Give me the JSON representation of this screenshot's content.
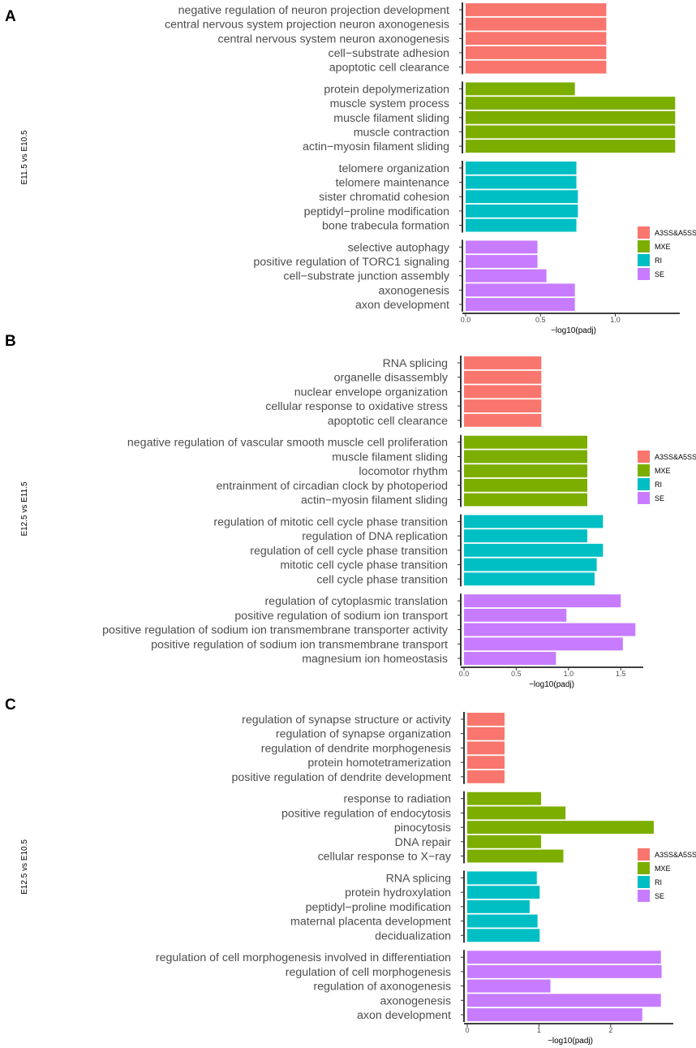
{
  "colors": {
    "A3SS&A5SS": "#F8766D",
    "MXE": "#7CAE00",
    "RI": "#00BFC4",
    "SE": "#C77CFF"
  },
  "legend": [
    "A3SS&A5SS",
    "MXE",
    "RI",
    "SE"
  ],
  "chart_data": [
    {
      "type": "bar",
      "orientation": "horizontal",
      "panel": "A",
      "ylabel": "E11.5 vs E10.5",
      "xlabel": "−log10(padj)",
      "xlim": [
        0,
        1.42
      ],
      "ticks": [
        0.0,
        0.5,
        1.0
      ],
      "tick_labels": [
        "0.0",
        "0.5",
        "1.0"
      ],
      "groups": [
        {
          "type": "A3SS&A5SS",
          "terms": [
            "negative regulation of neuron projection development",
            "central nervous system projection neuron axonogenesis",
            "central nervous system neuron axonogenesis",
            "cell−substrate adhesion",
            "apoptotic cell clearance"
          ],
          "values": [
            0.94,
            0.94,
            0.94,
            0.94,
            0.94
          ]
        },
        {
          "type": "MXE",
          "terms": [
            "protein depolymerization",
            "muscle system process",
            "muscle filament sliding",
            "muscle contraction",
            "actin−myosin filament sliding"
          ],
          "values": [
            0.73,
            1.4,
            1.4,
            1.4,
            1.4
          ]
        },
        {
          "type": "RI",
          "terms": [
            "telomere organization",
            "telomere maintenance",
            "sister chromatid cohesion",
            "peptidyl−proline modification",
            "bone trabecula formation"
          ],
          "values": [
            0.74,
            0.74,
            0.75,
            0.75,
            0.74
          ]
        },
        {
          "type": "SE",
          "terms": [
            "selective autophagy",
            "positive regulation of TORC1 signaling",
            "cell−substrate junction assembly",
            "axonogenesis",
            "axon development"
          ],
          "values": [
            0.48,
            0.48,
            0.54,
            0.73,
            0.73
          ]
        }
      ]
    },
    {
      "type": "bar",
      "orientation": "horizontal",
      "panel": "B",
      "ylabel": "E12.5 vs E11.5",
      "xlabel": "−log10(padj)",
      "xlim": [
        0,
        1.7
      ],
      "ticks": [
        0.0,
        0.5,
        1.0,
        1.5
      ],
      "tick_labels": [
        "0.0",
        "0.5",
        "1.0",
        "1.5"
      ],
      "groups": [
        {
          "type": "A3SS&A5SS",
          "terms": [
            "RNA splicing",
            "organelle disassembly",
            "nuclear envelope organization",
            "cellular response to oxidative stress",
            "apoptotic cell clearance"
          ],
          "values": [
            0.74,
            0.74,
            0.74,
            0.74,
            0.74
          ]
        },
        {
          "type": "MXE",
          "terms": [
            "negative regulation of vascular smooth muscle cell proliferation",
            "muscle filament sliding",
            "locomotor rhythm",
            "entrainment of circadian clock by photoperiod",
            "actin−myosin filament sliding"
          ],
          "values": [
            1.18,
            1.18,
            1.18,
            1.18,
            1.18
          ]
        },
        {
          "type": "RI",
          "terms": [
            "regulation of mitotic cell cycle phase transition",
            "regulation of DNA replication",
            "regulation of cell cycle phase transition",
            "mitotic cell cycle phase transition",
            "cell cycle phase transition"
          ],
          "values": [
            1.33,
            1.18,
            1.33,
            1.27,
            1.25
          ]
        },
        {
          "type": "SE",
          "terms": [
            "regulation of cytoplasmic translation",
            "positive regulation of sodium ion transport",
            "positive regulation of sodium ion transmembrane transporter activity",
            "positive regulation of sodium ion transmembrane transport",
            "magnesium ion homeostasis"
          ],
          "values": [
            1.5,
            0.98,
            1.64,
            1.52,
            0.88
          ]
        }
      ]
    },
    {
      "type": "bar",
      "orientation": "horizontal",
      "panel": "C",
      "ylabel": "E12.5 vs E10.5",
      "xlabel": "−log10(padj)",
      "xlim": [
        0,
        2.85
      ],
      "ticks": [
        0,
        1,
        2
      ],
      "tick_labels": [
        "0",
        "1",
        "2"
      ],
      "groups": [
        {
          "type": "A3SS&A5SS",
          "terms": [
            "regulation of synapse structure or activity",
            "regulation of synapse organization",
            "regulation of dendrite morphogenesis",
            "protein homotetramerization",
            "positive regulation of dendrite development"
          ],
          "values": [
            0.52,
            0.52,
            0.52,
            0.52,
            0.52
          ]
        },
        {
          "type": "MXE",
          "terms": [
            "response to radiation",
            "positive regulation of endocytosis",
            "pinocytosis",
            "DNA repair",
            "cellular response to X−ray"
          ],
          "values": [
            1.03,
            1.37,
            2.6,
            1.03,
            1.34
          ]
        },
        {
          "type": "RI",
          "terms": [
            "RNA splicing",
            "protein hydroxylation",
            "peptidyl−proline modification",
            "maternal placenta development",
            "decidualization"
          ],
          "values": [
            0.97,
            1.01,
            0.87,
            0.98,
            1.01
          ]
        },
        {
          "type": "SE",
          "terms": [
            "regulation of cell morphogenesis involved in differentiation",
            "regulation of cell morphogenesis",
            "regulation of axonogenesis",
            "axonogenesis",
            "axon development"
          ],
          "values": [
            2.7,
            2.71,
            1.16,
            2.7,
            2.44
          ]
        }
      ]
    }
  ]
}
